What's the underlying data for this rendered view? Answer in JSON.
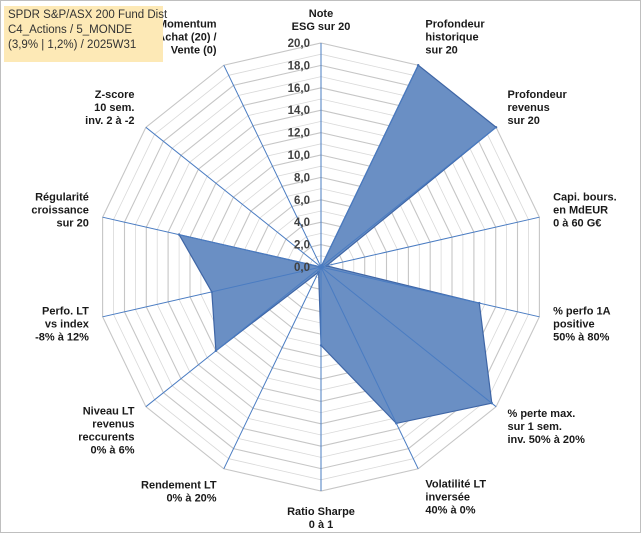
{
  "title_lines": [
    "SPDR S&P/ASX 200 Fund Dist",
    "C4_Actions / 5_MONDE",
    "(3,9% | 1,2%) / 2025W31"
  ],
  "chart_data": {
    "type": "radar",
    "categories": [
      [
        "Note",
        "ESG sur 20"
      ],
      [
        "Profondeur",
        "historique",
        "sur 20"
      ],
      [
        "Profondeur",
        "revenus",
        "sur 20"
      ],
      [
        "Capi. bours.",
        "en MdEUR",
        "0 à 60 G€"
      ],
      [
        "% perfo 1A",
        "positive",
        "50% à 80%"
      ],
      [
        "% perte max.",
        "sur 1 sem.",
        "inv. 50% à 20%"
      ],
      [
        "Volatilité LT",
        "inversée",
        "40% à 0%"
      ],
      [
        "Ratio Sharpe",
        "0 à 1"
      ],
      [
        "Rendement LT",
        "0% à 20%"
      ],
      [
        "Niveau LT",
        "revenus",
        "reccurents",
        "0% à 6%"
      ],
      [
        "Perfo. LT",
        "vs index",
        "-8% à 12%"
      ],
      [
        "Régularité",
        "croissance",
        "sur 20"
      ],
      [
        "Z-score",
        "10 sem.",
        "inv. 2 à -2"
      ],
      [
        "Momentum",
        "Achat (20) /",
        "Vente (0)"
      ]
    ],
    "values": [
      0,
      20,
      20,
      0.5,
      14.5,
      19.5,
      15.5,
      7,
      0.5,
      12,
      10,
      13,
      0,
      0
    ],
    "r_min": 0,
    "r_max": 20,
    "ticks": [
      "0,0",
      "2,0",
      "4,0",
      "6,0",
      "8,0",
      "10,0",
      "12,0",
      "14,0",
      "16,0",
      "18,0",
      "20,0"
    ],
    "grid": true,
    "legend": "none",
    "colors": {
      "fill": "#6a8fc4",
      "stroke": "#3f66a6",
      "spoke": "#4a7cc2",
      "ring": "#d9d9d9",
      "ring_major": "#c6c6c6"
    }
  }
}
